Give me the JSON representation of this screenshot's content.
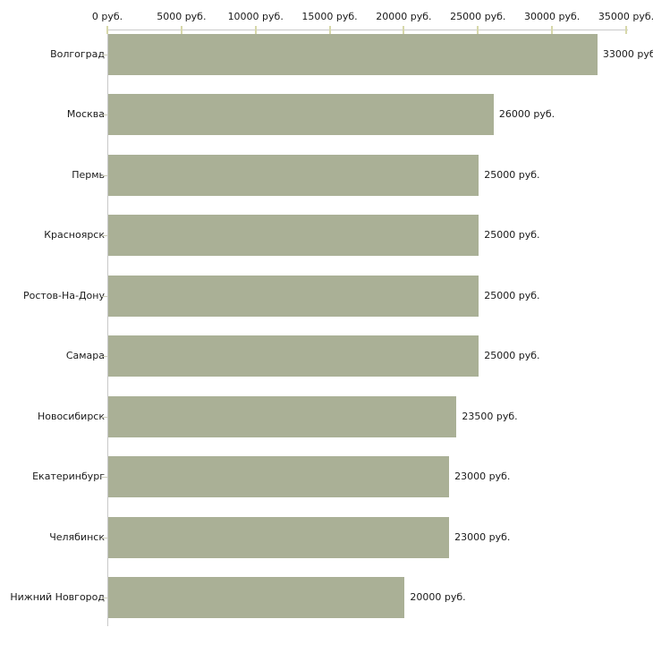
{
  "chart_data": {
    "type": "bar",
    "orientation": "horizontal",
    "title": "",
    "xlabel": "",
    "ylabel": "",
    "categories": [
      "Волгоград",
      "Москва",
      "Пермь",
      "Красноярск",
      "Ростов-На-Дону",
      "Самара",
      "Новосибирск",
      "Екатеринбург",
      "Челябинск",
      "Нижний Новгород"
    ],
    "values": [
      33000,
      26000,
      25000,
      25000,
      25000,
      25000,
      23500,
      23000,
      23000,
      20000
    ],
    "value_labels": [
      "33000 руб",
      "26000 руб.",
      "25000 руб.",
      "25000 руб.",
      "25000 руб.",
      "25000 руб.",
      "23500 руб.",
      "23000 руб.",
      "23000 руб.",
      "20000 руб."
    ],
    "x_ticks": [
      0,
      5000,
      10000,
      15000,
      20000,
      25000,
      30000,
      35000
    ],
    "x_tick_labels": [
      "0 руб.",
      "5000 руб.",
      "10000 руб.",
      "15000 руб.",
      "20000 руб.",
      "25000 руб.",
      "30000 руб.",
      "35000 руб."
    ],
    "xlim": [
      0,
      35000
    ],
    "grid": false,
    "legend": false,
    "bar_color": "#aab096",
    "axis_color": "#c9c9c9",
    "tick_color": "#d7d8aa",
    "y_tick_color": "#ccccb8",
    "text_color": "#1a1a1a",
    "background": "#ffffff"
  }
}
